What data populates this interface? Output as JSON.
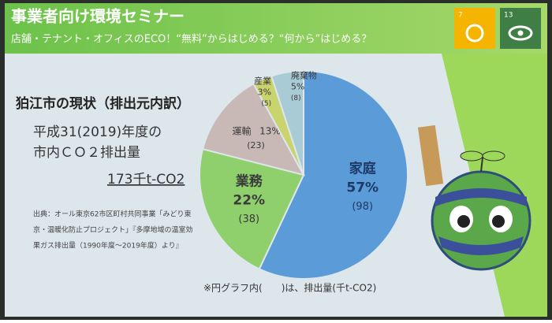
{
  "header": {
    "title": "事業者向け環境セミナー",
    "subtitle": "店舗・テナント・オフィスのECO！“無料”からはじめる？“何から”はじめる？",
    "sdg_goals": [
      "7",
      "13"
    ]
  },
  "slide": {
    "heading": "狛江市の現状（排出元内訳）",
    "period_lines": [
      "平成31(2019)年度の",
      "市内ＣＯ２排出量"
    ],
    "total": "173千t-CO2",
    "source_lines": [
      "出典：オール東京62市区町村共同事業「みどり東",
      "京・温暖化防止プロジェクト」『多摩地域の温室効",
      "果ガス排出量（1990年度～2019年度）より』"
    ],
    "note": "※円グラフ内(　　)は、排出量(千t-CO2)"
  },
  "chart_data": {
    "type": "pie",
    "categories": [
      "家庭",
      "業務",
      "運輸",
      "産業",
      "廃棄物"
    ],
    "values": [
      57,
      22,
      13,
      3,
      5
    ],
    "value_labels": [
      "57%",
      "22%",
      "13%",
      "3%",
      "5%"
    ],
    "amount_labels": [
      "(98)",
      "(38)",
      "(23)",
      "(5)",
      "(8)"
    ],
    "colors": [
      "#5b9bd8",
      "#8fd06c",
      "#c8b9b6",
      "#c9d46e",
      "#a9cbd6"
    ]
  }
}
